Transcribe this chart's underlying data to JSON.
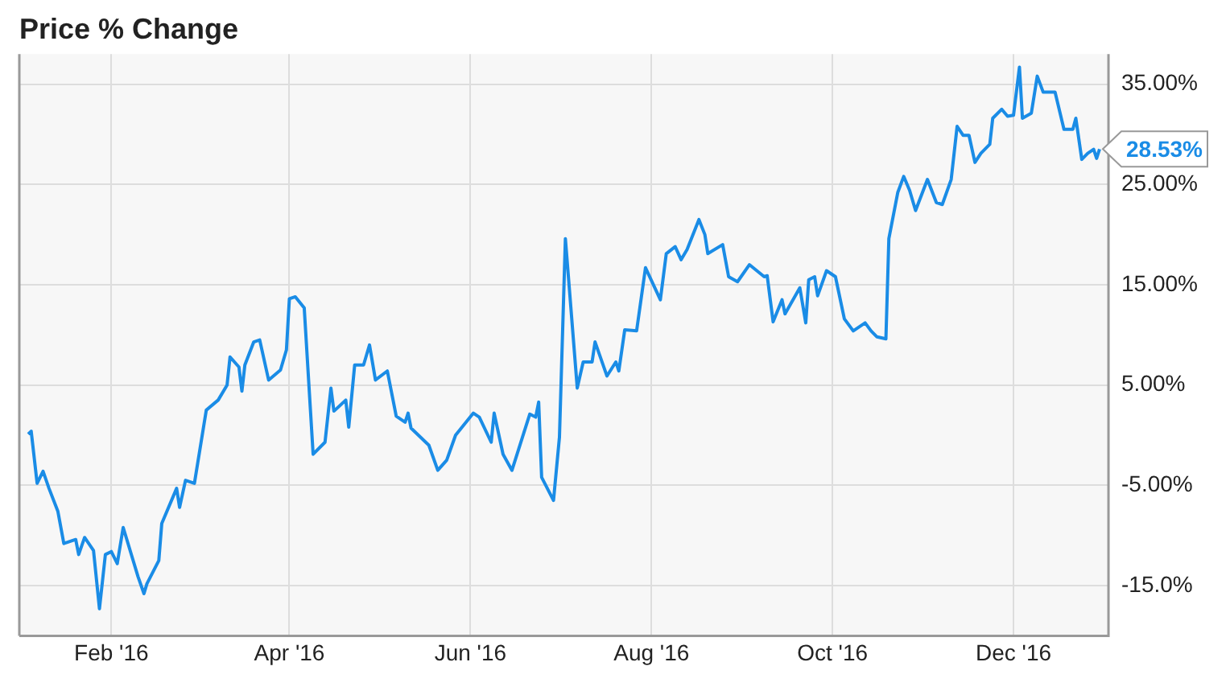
{
  "chart_data": {
    "type": "line",
    "title": "Price % Change",
    "color": "#1a8ce6",
    "marker": "none",
    "grid": true,
    "legend": false,
    "x": [
      "2016-01-04",
      "2016-01-05",
      "2016-01-07",
      "2016-01-09",
      "2016-01-11",
      "2016-01-14",
      "2016-01-16",
      "2016-01-20",
      "2016-01-21",
      "2016-01-23",
      "2016-01-26",
      "2016-01-28",
      "2016-01-30",
      "2016-02-01",
      "2016-02-03",
      "2016-02-05",
      "2016-02-10",
      "2016-02-12",
      "2016-02-13",
      "2016-02-17",
      "2016-02-18",
      "2016-02-23",
      "2016-02-24",
      "2016-02-26",
      "2016-02-29",
      "2016-03-04",
      "2016-03-08",
      "2016-03-11",
      "2016-03-12",
      "2016-03-15",
      "2016-03-16",
      "2016-03-17",
      "2016-03-20",
      "2016-03-22",
      "2016-03-25",
      "2016-03-29",
      "2016-03-31",
      "2016-04-01",
      "2016-04-03",
      "2016-04-06",
      "2016-04-09",
      "2016-04-13",
      "2016-04-15",
      "2016-04-16",
      "2016-04-20",
      "2016-04-21",
      "2016-04-23",
      "2016-04-26",
      "2016-04-28",
      "2016-04-30",
      "2016-05-04",
      "2016-05-07",
      "2016-05-10",
      "2016-05-11",
      "2016-05-12",
      "2016-05-18",
      "2016-05-21",
      "2016-05-24",
      "2016-05-27",
      "2016-06-02",
      "2016-06-04",
      "2016-06-08",
      "2016-06-09",
      "2016-06-12",
      "2016-06-15",
      "2016-06-21",
      "2016-06-23",
      "2016-06-24",
      "2016-06-25",
      "2016-06-29",
      "2016-07-01",
      "2016-07-03",
      "2016-07-07",
      "2016-07-09",
      "2016-07-12",
      "2016-07-13",
      "2016-07-17",
      "2016-07-20",
      "2016-07-21",
      "2016-07-23",
      "2016-07-27",
      "2016-07-30",
      "2016-08-04",
      "2016-08-06",
      "2016-08-09",
      "2016-08-11",
      "2016-08-13",
      "2016-08-17",
      "2016-08-19",
      "2016-08-20",
      "2016-08-25",
      "2016-08-27",
      "2016-08-30",
      "2016-09-03",
      "2016-09-08",
      "2016-09-09",
      "2016-09-11",
      "2016-09-14",
      "2016-09-15",
      "2016-09-20",
      "2016-09-22",
      "2016-09-23",
      "2016-09-25",
      "2016-09-26",
      "2016-09-29",
      "2016-10-02",
      "2016-10-05",
      "2016-10-08",
      "2016-10-12",
      "2016-10-14",
      "2016-10-16",
      "2016-10-19",
      "2016-10-20",
      "2016-10-23",
      "2016-10-25",
      "2016-10-27",
      "2016-10-29",
      "2016-11-02",
      "2016-11-05",
      "2016-11-07",
      "2016-11-10",
      "2016-11-12",
      "2016-11-14",
      "2016-11-16",
      "2016-11-18",
      "2016-11-20",
      "2016-11-23",
      "2016-11-24",
      "2016-11-27",
      "2016-11-29",
      "2016-12-01",
      "2016-12-03",
      "2016-12-04",
      "2016-12-07",
      "2016-12-09",
      "2016-12-11",
      "2016-12-15",
      "2016-12-18",
      "2016-12-21",
      "2016-12-22",
      "2016-12-24",
      "2016-12-26",
      "2016-12-28",
      "2016-12-29",
      "2016-12-30"
    ],
    "values": [
      0.1,
      0.4,
      -4.8,
      -3.6,
      -5.3,
      -7.6,
      -10.8,
      -10.4,
      -11.9,
      -10.2,
      -11.5,
      -17.3,
      -11.9,
      -11.6,
      -12.8,
      -9.2,
      -14.1,
      -15.8,
      -14.8,
      -12.5,
      -8.8,
      -5.3,
      -7.2,
      -4.5,
      -4.8,
      2.5,
      3.5,
      5,
      7.8,
      6.8,
      4.4,
      7,
      9.3,
      9.5,
      5.5,
      6.5,
      8.5,
      13.6,
      13.8,
      12.7,
      -1.9,
      -0.7,
      4.7,
      2.4,
      3.5,
      0.8,
      7,
      7,
      9,
      5.5,
      6.4,
      1.9,
      1.3,
      2.2,
      0.7,
      -1,
      -3.5,
      -2.5,
      0,
      2.2,
      1.8,
      -0.7,
      2.2,
      -1.9,
      -3.5,
      2.1,
      1.8,
      3.3,
      -4.2,
      -6.5,
      -0.2,
      19.6,
      4.7,
      7.3,
      7.3,
      9.3,
      5.9,
      7.3,
      6.4,
      10.5,
      10.4,
      16.7,
      13.5,
      18.1,
      18.8,
      17.5,
      18.5,
      21.5,
      20,
      18.1,
      19,
      15.8,
      15.3,
      17,
      15.8,
      15.9,
      11.3,
      13.5,
      12.1,
      14.7,
      11.2,
      15.5,
      15.8,
      13.9,
      16.4,
      15.8,
      11.6,
      10.4,
      11.2,
      10.4,
      9.8,
      9.6,
      19.6,
      24.2,
      25.8,
      24.4,
      22.4,
      25.5,
      23.2,
      23,
      25.5,
      30.8,
      29.9,
      29.9,
      27.2,
      28.1,
      29,
      31.6,
      32.5,
      31.8,
      31.9,
      36.7,
      31.6,
      32.1,
      35.8,
      34.2,
      34.2,
      30.5,
      30.5,
      31.6,
      27.5,
      28.1,
      28.5,
      27.6,
      28.53
    ],
    "xlim": [
      "2016-01-01",
      "2017-01-02"
    ],
    "xticks": [
      {
        "value": "2016-02-01",
        "label": "Feb '16"
      },
      {
        "value": "2016-04-01",
        "label": "Apr '16"
      },
      {
        "value": "2016-06-01",
        "label": "Jun '16"
      },
      {
        "value": "2016-08-01",
        "label": "Aug '16"
      },
      {
        "value": "2016-10-01",
        "label": "Oct '16"
      },
      {
        "value": "2016-12-01",
        "label": "Dec '16"
      }
    ],
    "ylim": [
      -20,
      38
    ],
    "yticks": [
      {
        "value": -15,
        "label": "-15.0%"
      },
      {
        "value": -5,
        "label": "-5.00%"
      },
      {
        "value": 5,
        "label": "5.00%"
      },
      {
        "value": 15,
        "label": "15.00%"
      },
      {
        "value": 25,
        "label": "25.00%"
      },
      {
        "value": 35,
        "label": "35.00%"
      }
    ],
    "annotations": [
      {
        "text": "28.53%",
        "x": "2016-12-30",
        "y": 28.53
      }
    ]
  }
}
